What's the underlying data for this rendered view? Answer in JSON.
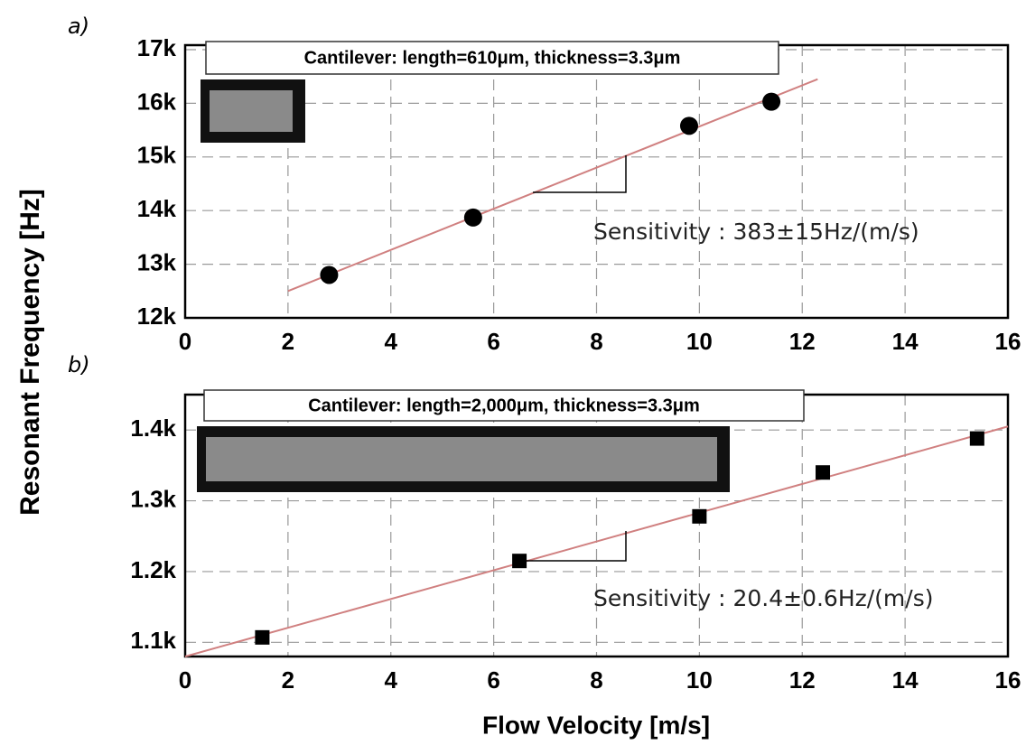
{
  "chart_data": [
    {
      "type": "scatter",
      "panel_label": "a)",
      "legend_box": "Cantilever: length=610μm, thickness=3.3μm",
      "annotation": "Sensitivity : 383±15Hz/(m/s)",
      "ylabel": "Resonant Frequency [Hz]",
      "x": [
        2.8,
        5.6,
        9.8,
        11.4
      ],
      "values": [
        12800,
        13870,
        15580,
        16030
      ],
      "marker": "circle",
      "color": "#000000",
      "fit": {
        "x": [
          2,
          12.3
        ],
        "values": [
          12500,
          16450
        ],
        "color": "#d08080"
      },
      "xlim": [
        0,
        16
      ],
      "xticks": [
        0,
        2,
        4,
        6,
        8,
        10,
        12,
        14,
        16
      ],
      "ylim": [
        12000,
        17000
      ],
      "yticks": [
        {
          "value": 12000,
          "label": "12k"
        },
        {
          "value": 13000,
          "label": "13k"
        },
        {
          "value": 14000,
          "label": "14k"
        },
        {
          "value": 15000,
          "label": "15k"
        },
        {
          "value": 16000,
          "label": "16k"
        },
        {
          "value": 17000,
          "label": "17k"
        }
      ],
      "grid": true
    },
    {
      "type": "scatter",
      "panel_label": "b)",
      "legend_box": "Cantilever: length=2,000μm, thickness=3.3μm",
      "annotation": "Sensitivity : 20.4±0.6Hz/(m/s)",
      "xlabel": "Flow Velocity [m/s]",
      "x": [
        1.5,
        6.5,
        10,
        12.4,
        15.4
      ],
      "values": [
        1107,
        1215,
        1278,
        1340,
        1388
      ],
      "marker": "square",
      "color": "#000000",
      "fit": {
        "x": [
          0,
          16
        ],
        "values": [
          1080,
          1405
        ],
        "color": "#d08080"
      },
      "xlim": [
        0,
        16
      ],
      "xticks": [
        0,
        2,
        4,
        6,
        8,
        10,
        12,
        14,
        16
      ],
      "ylim": [
        1080,
        1450
      ],
      "yticks": [
        {
          "value": 1100,
          "label": "1.1k"
        },
        {
          "value": 1200,
          "label": "1.2k"
        },
        {
          "value": 1300,
          "label": "1.3k"
        },
        {
          "value": 1400,
          "label": "1.4k"
        }
      ],
      "grid": true
    }
  ]
}
